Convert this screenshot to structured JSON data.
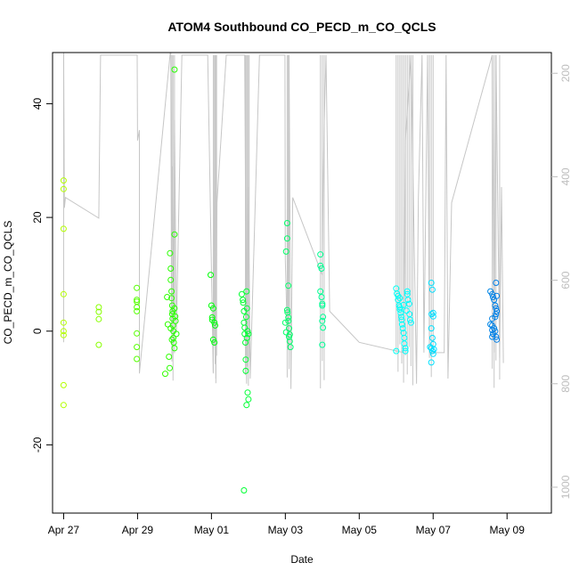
{
  "chart_data": {
    "type": "scatter",
    "title": "ATOM4 Southbound CO_PECD_m_CO_QCLS",
    "xlabel": "Date",
    "ylabel": "CO_PECD_m_CO_QCLS",
    "xlim": [
      -0.3,
      13.2
    ],
    "ylim": [
      -32,
      49
    ],
    "x_ticks": [
      {
        "v": 0,
        "label": "Apr 27"
      },
      {
        "v": 2,
        "label": "Apr 29"
      },
      {
        "v": 4,
        "label": "May 01"
      },
      {
        "v": 6,
        "label": "May 03"
      },
      {
        "v": 8,
        "label": "May 05"
      },
      {
        "v": 10,
        "label": "May 07"
      },
      {
        "v": 12,
        "label": "May 09"
      }
    ],
    "y_ticks": [
      -20,
      0,
      20,
      40
    ],
    "right_axis": {
      "ylim": [
        1050,
        160
      ],
      "ticks": [
        200,
        400,
        600,
        800,
        1000
      ],
      "color": "#bdbdbd"
    },
    "altitude_trace": [
      [
        0.0,
        140
      ],
      [
        0.02,
        460
      ],
      [
        0.05,
        440
      ],
      [
        0.95,
        480
      ],
      [
        1.0,
        165
      ],
      [
        1.99,
        165
      ],
      [
        2.0,
        330
      ],
      [
        2.05,
        310
      ],
      [
        2.05,
        780
      ],
      [
        2.9,
        150
      ],
      [
        2.92,
        700
      ],
      [
        2.95,
        380
      ],
      [
        2.98,
        660
      ],
      [
        3.0,
        290
      ],
      [
        3.05,
        700
      ],
      [
        3.2,
        165
      ],
      [
        3.9,
        165
      ],
      [
        4.05,
        780
      ],
      [
        4.1,
        230
      ],
      [
        4.12,
        790
      ],
      [
        4.15,
        450
      ],
      [
        4.4,
        165
      ],
      [
        4.9,
        165
      ],
      [
        4.95,
        800
      ],
      [
        5.0,
        420
      ],
      [
        5.05,
        790
      ],
      [
        5.3,
        165
      ],
      [
        5.99,
        165
      ],
      [
        6.0,
        560
      ],
      [
        6.05,
        700
      ],
      [
        6.1,
        165
      ],
      [
        6.15,
        810
      ],
      [
        6.2,
        440
      ],
      [
        7.0,
        590
      ],
      [
        7.02,
        440
      ],
      [
        7.05,
        300
      ],
      [
        7.1,
        165
      ],
      [
        7.2,
        660
      ],
      [
        8.0,
        720
      ],
      [
        9.2,
        740
      ],
      [
        9.25,
        330
      ],
      [
        9.4,
        165
      ],
      [
        9.55,
        800
      ],
      [
        9.6,
        440
      ],
      [
        9.7,
        165
      ],
      [
        9.75,
        740
      ],
      [
        9.85,
        165
      ],
      [
        9.9,
        740
      ],
      [
        10.3,
        740
      ],
      [
        10.35,
        165
      ],
      [
        10.4,
        790
      ],
      [
        10.5,
        450
      ],
      [
        11.6,
        165
      ],
      [
        11.65,
        740
      ],
      [
        11.7,
        165
      ],
      [
        11.8,
        750
      ],
      [
        11.85,
        420
      ],
      [
        11.9,
        760
      ]
    ],
    "altitude_spike_days": [
      0.0,
      2.93,
      2.96,
      3.0,
      4.05,
      4.08,
      4.1,
      4.12,
      4.14,
      4.92,
      4.95,
      4.97,
      5.0,
      5.02,
      6.05,
      6.08,
      6.1,
      6.95,
      7.0,
      7.05,
      9.0,
      9.05,
      9.1,
      9.15,
      9.2,
      9.25,
      9.3,
      9.35,
      9.4,
      9.45,
      9.9,
      9.95,
      10.0,
      11.6,
      11.65,
      11.7,
      11.8
    ],
    "points": [
      [
        0.0,
        26.5
      ],
      [
        0.0,
        25
      ],
      [
        0.0,
        18
      ],
      [
        0.0,
        6.5
      ],
      [
        0.0,
        1.5
      ],
      [
        0.0,
        0
      ],
      [
        0.0,
        -0.7
      ],
      [
        0.0,
        -9.5
      ],
      [
        0.0,
        -13
      ],
      [
        0.95,
        4.2
      ],
      [
        0.95,
        3.4
      ],
      [
        0.95,
        2.1
      ],
      [
        0.95,
        -2.4
      ],
      [
        1.98,
        7.6
      ],
      [
        1.98,
        5.5
      ],
      [
        1.98,
        5.2
      ],
      [
        1.98,
        4.2
      ],
      [
        1.98,
        3.5
      ],
      [
        1.98,
        -0.4
      ],
      [
        1.98,
        -2.8
      ],
      [
        1.98,
        -4.9
      ],
      [
        2.75,
        -7.5
      ],
      [
        2.8,
        6
      ],
      [
        2.82,
        1.2
      ],
      [
        2.85,
        -4.5
      ],
      [
        2.87,
        -6.5
      ],
      [
        2.88,
        13.7
      ],
      [
        2.9,
        11
      ],
      [
        2.9,
        9
      ],
      [
        2.92,
        7
      ],
      [
        2.92,
        5.8
      ],
      [
        2.94,
        4.5
      ],
      [
        2.94,
        3
      ],
      [
        2.95,
        2.2
      ],
      [
        2.96,
        1
      ],
      [
        2.97,
        0
      ],
      [
        2.97,
        -1.2
      ],
      [
        2.98,
        -2
      ],
      [
        3.0,
        -3
      ],
      [
        3.0,
        17
      ],
      [
        3.0,
        46
      ],
      [
        3.0,
        4
      ],
      [
        3.02,
        2.6
      ],
      [
        3.03,
        1.8
      ],
      [
        3.05,
        -0.5
      ],
      [
        2.9,
        0.5
      ],
      [
        2.93,
        -1.5
      ],
      [
        2.95,
        3.5
      ],
      [
        3.98,
        9.9
      ],
      [
        4.0,
        4.5
      ],
      [
        4.02,
        2.4
      ],
      [
        4.02,
        2.0
      ],
      [
        4.05,
        4
      ],
      [
        4.05,
        -1.5
      ],
      [
        4.08,
        1.5
      ],
      [
        4.08,
        -2.0
      ],
      [
        4.1,
        1.0
      ],
      [
        4.82,
        6.5
      ],
      [
        4.85,
        5.5
      ],
      [
        4.86,
        5.0
      ],
      [
        4.88,
        3.5
      ],
      [
        4.88,
        1.5
      ],
      [
        4.9,
        0.6
      ],
      [
        4.9,
        -0.5
      ],
      [
        4.92,
        -2.0
      ],
      [
        4.93,
        -5
      ],
      [
        4.93,
        -7
      ],
      [
        4.95,
        7.0
      ],
      [
        4.96,
        4.0
      ],
      [
        4.98,
        0
      ],
      [
        4.98,
        -10.8
      ],
      [
        5.0,
        -12
      ],
      [
        4.95,
        -13
      ],
      [
        4.88,
        -28
      ],
      [
        4.94,
        2.5
      ],
      [
        4.96,
        -1.2
      ],
      [
        5.0,
        -0.5
      ],
      [
        6.0,
        1.5
      ],
      [
        6.02,
        14
      ],
      [
        6.05,
        19
      ],
      [
        6.05,
        16.3
      ],
      [
        6.08,
        8
      ],
      [
        6.05,
        3.7
      ],
      [
        6.06,
        3.3
      ],
      [
        6.08,
        2.4
      ],
      [
        6.08,
        1.8
      ],
      [
        6.1,
        0.5
      ],
      [
        6.1,
        -1
      ],
      [
        6.12,
        -0.6
      ],
      [
        6.12,
        -1.8
      ],
      [
        6.14,
        -2.8
      ],
      [
        6.02,
        -0.2
      ],
      [
        6.95,
        13.5
      ],
      [
        6.95,
        11.5
      ],
      [
        6.98,
        11
      ],
      [
        6.95,
        7
      ],
      [
        6.98,
        6
      ],
      [
        7.0,
        4.8
      ],
      [
        7.0,
        4.5
      ],
      [
        7.02,
        2.5
      ],
      [
        7.0,
        1.8
      ],
      [
        7.02,
        0.6
      ],
      [
        7.0,
        -2.4
      ],
      [
        9.0,
        7.5
      ],
      [
        9.02,
        6.6
      ],
      [
        9.05,
        6.2
      ],
      [
        9.05,
        5.5
      ],
      [
        9.08,
        4.5
      ],
      [
        9.1,
        4.2
      ],
      [
        9.1,
        3.8
      ],
      [
        9.12,
        3.2
      ],
      [
        9.14,
        2.5
      ],
      [
        9.15,
        2
      ],
      [
        9.16,
        1.2
      ],
      [
        9.18,
        0.5
      ],
      [
        9.2,
        -0.3
      ],
      [
        9.22,
        -1.2
      ],
      [
        9.22,
        -2.2
      ],
      [
        9.25,
        -3
      ],
      [
        9.25,
        -3.5
      ],
      [
        9.0,
        -3.5
      ],
      [
        9.3,
        7
      ],
      [
        9.3,
        6.5
      ],
      [
        9.32,
        5.5
      ],
      [
        9.35,
        4.8
      ],
      [
        9.36,
        3
      ],
      [
        9.38,
        2
      ],
      [
        9.1,
        5.8
      ],
      [
        9.2,
        4.6
      ],
      [
        9.28,
        3.6
      ],
      [
        9.4,
        1.5
      ],
      [
        9.95,
        8.5
      ],
      [
        9.98,
        7.3
      ],
      [
        10.0,
        3.2
      ],
      [
        10.0,
        2.6
      ],
      [
        9.95,
        0.5
      ],
      [
        9.98,
        -1.2
      ],
      [
        10.0,
        -2.3
      ],
      [
        9.95,
        -3.0
      ],
      [
        9.98,
        -3.5
      ],
      [
        10.0,
        -4
      ],
      [
        9.95,
        -5.5
      ],
      [
        9.92,
        -2.8
      ],
      [
        10.02,
        -3.2
      ],
      [
        9.96,
        3.0
      ],
      [
        11.55,
        7
      ],
      [
        11.6,
        6.5
      ],
      [
        11.62,
        6
      ],
      [
        11.65,
        5.5
      ],
      [
        11.7,
        8.5
      ],
      [
        11.72,
        6.2
      ],
      [
        11.68,
        4.5
      ],
      [
        11.7,
        4
      ],
      [
        11.72,
        3.5
      ],
      [
        11.7,
        3
      ],
      [
        11.68,
        2.5
      ],
      [
        11.6,
        2.2
      ],
      [
        11.55,
        1.2
      ],
      [
        11.6,
        1
      ],
      [
        11.65,
        0.5
      ],
      [
        11.6,
        0.2
      ],
      [
        11.68,
        0
      ],
      [
        11.62,
        -0.5
      ],
      [
        11.7,
        -1
      ],
      [
        11.72,
        -1.5
      ],
      [
        11.6,
        -1
      ]
    ]
  }
}
